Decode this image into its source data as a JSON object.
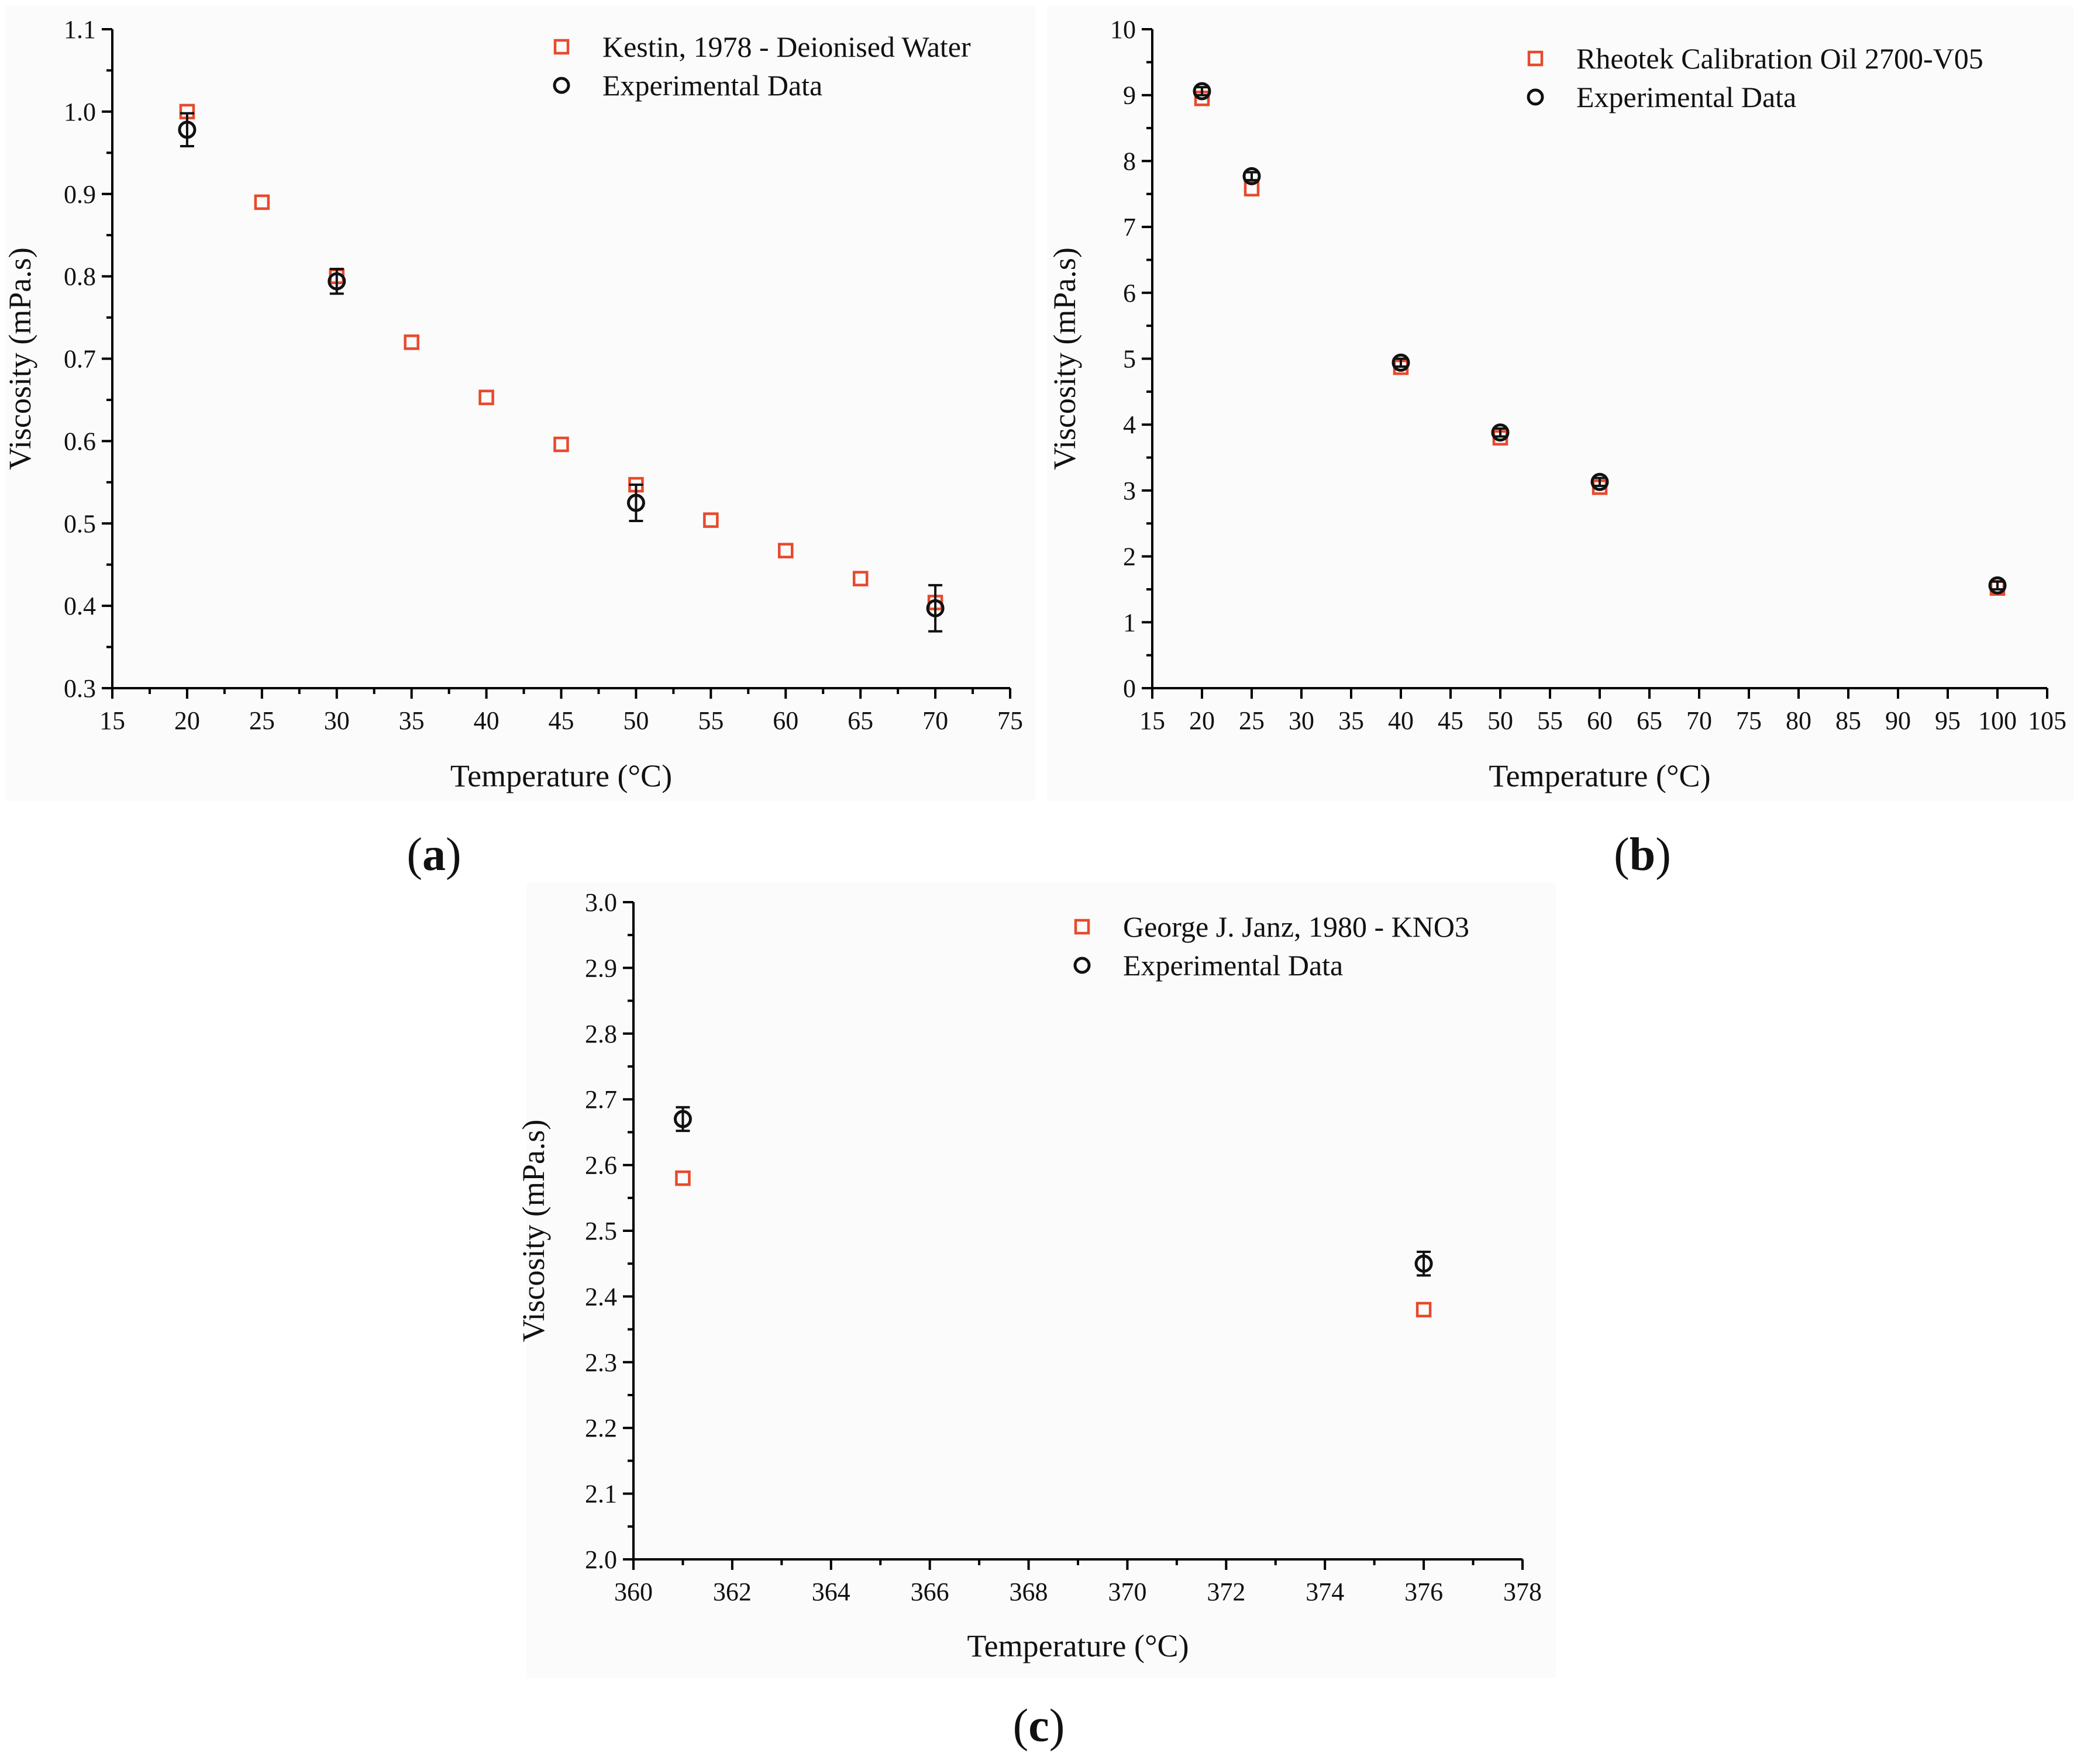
{
  "colors": {
    "reference": "#e8492c",
    "experimental": "#111111",
    "panel_background": "#fbfbfb"
  },
  "panel_labels": [
    "a",
    "b",
    "c"
  ],
  "chart_data": [
    {
      "type": "scatter",
      "panel": "a",
      "xlabel": "Temperature (°C)",
      "ylabel": "Viscosity (mPa.s)",
      "xlim": [
        15,
        75
      ],
      "ylim": [
        0.3,
        1.1
      ],
      "xticks": [
        15,
        20,
        25,
        30,
        35,
        40,
        45,
        50,
        55,
        60,
        65,
        70,
        75
      ],
      "xtick_labels": [
        "15",
        "20",
        "25",
        "30",
        "35",
        "40",
        "45",
        "50",
        "55",
        "60",
        "65",
        "70",
        "75"
      ],
      "yticks": [
        0.3,
        0.4,
        0.5,
        0.6,
        0.7,
        0.8,
        0.9,
        1.0,
        1.1
      ],
      "ytick_labels": [
        "0.3",
        "0.4",
        "0.5",
        "0.6",
        "0.7",
        "0.8",
        "0.9",
        "1.0",
        "1.1"
      ],
      "legend_position": "top-right",
      "series": [
        {
          "name": "Kestin, 1978 - Deionised Water",
          "marker": "square",
          "color": "#e8492c",
          "x": [
            20,
            25,
            30,
            35,
            40,
            45,
            50,
            55,
            60,
            65,
            70
          ],
          "y": [
            1.0,
            0.89,
            0.8,
            0.72,
            0.653,
            0.596,
            0.547,
            0.504,
            0.467,
            0.433,
            0.404
          ]
        },
        {
          "name": "Experimental Data",
          "marker": "circle",
          "color": "#111111",
          "x": [
            20,
            30,
            50,
            70
          ],
          "y": [
            0.978,
            0.794,
            0.525,
            0.397
          ],
          "yerr": [
            0.02,
            0.015,
            0.022,
            0.028
          ]
        }
      ]
    },
    {
      "type": "scatter",
      "panel": "b",
      "xlabel": "Temperature (°C)",
      "ylabel": "Viscosity (mPa.s)",
      "xlim": [
        15,
        105
      ],
      "ylim": [
        0,
        10
      ],
      "xticks": [
        15,
        20,
        25,
        30,
        35,
        40,
        45,
        50,
        55,
        60,
        65,
        70,
        75,
        80,
        85,
        90,
        95,
        100,
        105
      ],
      "xtick_labels": [
        "15",
        "20",
        "25",
        "30",
        "35",
        "40",
        "45",
        "50",
        "55",
        "60",
        "65",
        "70",
        "75",
        "80",
        "85",
        "90",
        "95",
        "100",
        "105"
      ],
      "yticks": [
        0,
        1,
        2,
        3,
        4,
        5,
        6,
        7,
        8,
        9,
        10
      ],
      "ytick_labels": [
        "0",
        "1",
        "2",
        "3",
        "4",
        "5",
        "6",
        "7",
        "8",
        "9",
        "10"
      ],
      "legend_position": "top-right",
      "series": [
        {
          "name": "Rheotek Calibration Oil 2700-V05",
          "marker": "square",
          "color": "#e8492c",
          "x": [
            20,
            25,
            40,
            50,
            60,
            100
          ],
          "y": [
            8.95,
            7.58,
            4.87,
            3.8,
            3.05,
            1.52
          ]
        },
        {
          "name": "Experimental Data",
          "marker": "circle",
          "color": "#111111",
          "x": [
            20,
            25,
            40,
            50,
            60,
            100
          ],
          "y": [
            9.06,
            7.77,
            4.94,
            3.88,
            3.13,
            1.56
          ],
          "yerr": [
            0.06,
            0.06,
            0.06,
            0.06,
            0.06,
            0.06
          ]
        }
      ]
    },
    {
      "type": "scatter",
      "panel": "c",
      "xlabel": "Temperature (°C)",
      "ylabel": "Viscosity (mPa.s)",
      "xlim": [
        360,
        378
      ],
      "ylim": [
        2.0,
        3.0
      ],
      "xticks": [
        360,
        362,
        364,
        366,
        368,
        370,
        372,
        374,
        376,
        378
      ],
      "xtick_labels": [
        "360",
        "362",
        "364",
        "366",
        "368",
        "370",
        "372",
        "374",
        "376",
        "378"
      ],
      "yticks": [
        2.0,
        2.1,
        2.2,
        2.3,
        2.4,
        2.5,
        2.6,
        2.7,
        2.8,
        2.9,
        3.0
      ],
      "ytick_labels": [
        "2.0",
        "2.1",
        "2.2",
        "2.3",
        "2.4",
        "2.5",
        "2.6",
        "2.7",
        "2.8",
        "2.9",
        "3.0"
      ],
      "legend_position": "top-right",
      "series": [
        {
          "name": "George J. Janz, 1980 - KNO3",
          "marker": "square",
          "color": "#e8492c",
          "x": [
            361,
            376
          ],
          "y": [
            2.58,
            2.38
          ]
        },
        {
          "name": "Experimental Data",
          "marker": "circle",
          "color": "#111111",
          "x": [
            361,
            376
          ],
          "y": [
            2.67,
            2.45
          ],
          "yerr": [
            0.018,
            0.018
          ]
        }
      ]
    }
  ]
}
